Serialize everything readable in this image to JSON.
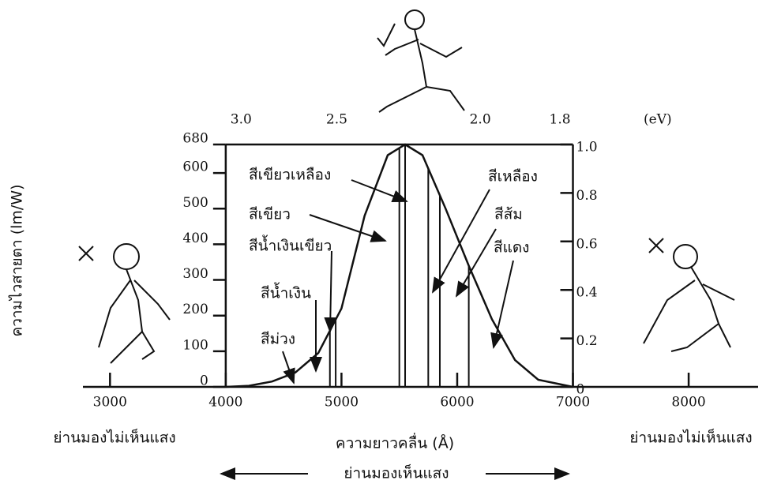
{
  "chart_data": {
    "type": "line",
    "y_label": "ความไวสายตา (lm/W)",
    "x_label": "ความยาวคลื่น (Å)",
    "top_label": "(eV)",
    "invisible_labels": [
      "ย่านมองไม่เห็นแสง",
      "ย่านมองไม่เห็นแสง"
    ],
    "visible_label": "ย่านมองเห็นแสง",
    "x": [
      4000,
      4200,
      4400,
      4600,
      4800,
      5000,
      5200,
      5400,
      5550,
      5700,
      5900,
      6100,
      6300,
      6500,
      6700,
      7000
    ],
    "values": [
      0,
      3,
      15,
      40,
      95,
      220,
      480,
      650,
      680,
      650,
      500,
      340,
      190,
      75,
      20,
      0
    ],
    "color": "#111111",
    "boundaries": [
      4900,
      4950,
      5500,
      5550,
      5750,
      5850,
      6100
    ],
    "annotations": [
      "สีเขียวเหลือง",
      "สีเขียว",
      "สีน้ำเงินเขียว",
      "สีน้ำเงิน",
      "สีม่วง",
      "สีเหลือง",
      "สีส้ม",
      "สีแดง"
    ],
    "xlim": [
      2800,
      8600
    ],
    "xticks": [
      3000,
      4000,
      5000,
      6000,
      7000,
      8000
    ],
    "ylim": [
      0,
      680
    ],
    "yticks": [
      0,
      100,
      200,
      300,
      400,
      500,
      600,
      680
    ],
    "y2lim": [
      0,
      1
    ],
    "y2ticks": [
      0,
      0.2,
      0.4,
      0.6,
      0.8,
      {
        "value": 1,
        "label": "1.0"
      }
    ],
    "top_ticks": [
      {
        "value": 3,
        "label": "3.0"
      },
      2.5,
      {
        "value": 2,
        "label": "2.0"
      },
      1.8
    ]
  }
}
